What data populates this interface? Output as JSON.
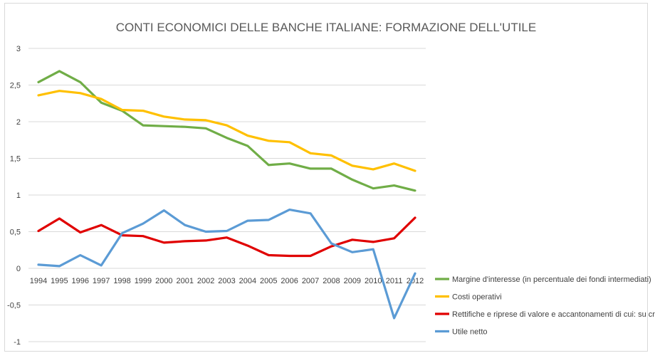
{
  "chart_data": {
    "type": "line",
    "title": "CONTI ECONOMICI DELLE BANCHE ITALIANE: FORMAZIONE DELL'UTILE",
    "xlabel": "",
    "ylabel": "",
    "categories": [
      "1994",
      "1995",
      "1996",
      "1997",
      "1998",
      "1999",
      "2000",
      "2001",
      "2002",
      "2003",
      "2004",
      "2005",
      "2006",
      "2007",
      "2008",
      "2009",
      "2010",
      "2011",
      "2012"
    ],
    "ylim": [
      -1,
      3
    ],
    "yticks": [
      3,
      2.5,
      2,
      1.5,
      1,
      0.5,
      0,
      -0.5,
      -1
    ],
    "ytick_labels": [
      "3",
      "2,5",
      "2",
      "1,5",
      "1",
      "0,5",
      "0",
      "-0,5",
      "-1"
    ],
    "grid": true,
    "legend_position": "right",
    "series": [
      {
        "name": "Margine d'interesse (in percentuale dei fondi intermediati)",
        "color": "#70ad47",
        "values": [
          2.54,
          2.69,
          2.54,
          2.26,
          2.15,
          1.95,
          1.94,
          1.93,
          1.91,
          1.78,
          1.67,
          1.41,
          1.43,
          1.36,
          1.36,
          1.21,
          1.09,
          1.13,
          1.06
        ]
      },
      {
        "name": "Costi operativi",
        "color": "#ffc000",
        "values": [
          2.36,
          2.42,
          2.39,
          2.31,
          2.16,
          2.15,
          2.07,
          2.03,
          2.02,
          1.95,
          1.81,
          1.74,
          1.72,
          1.57,
          1.54,
          1.4,
          1.35,
          1.43,
          1.33
        ]
      },
      {
        "name": "Rettifiche e riprese di valore e accantonamenti di cui: su crediti",
        "color": "#e00000",
        "values": [
          0.51,
          0.68,
          0.49,
          0.59,
          0.45,
          0.44,
          0.35,
          0.37,
          0.38,
          0.42,
          0.31,
          0.18,
          0.17,
          0.17,
          0.3,
          0.39,
          0.36,
          0.41,
          0.69
        ]
      },
      {
        "name": "Utile netto",
        "color": "#5b9bd5",
        "values": [
          0.05,
          0.03,
          0.18,
          0.04,
          0.48,
          0.61,
          0.79,
          0.59,
          0.5,
          0.51,
          0.65,
          0.66,
          0.8,
          0.75,
          0.34,
          0.22,
          0.26,
          -0.68,
          -0.07
        ]
      }
    ]
  }
}
